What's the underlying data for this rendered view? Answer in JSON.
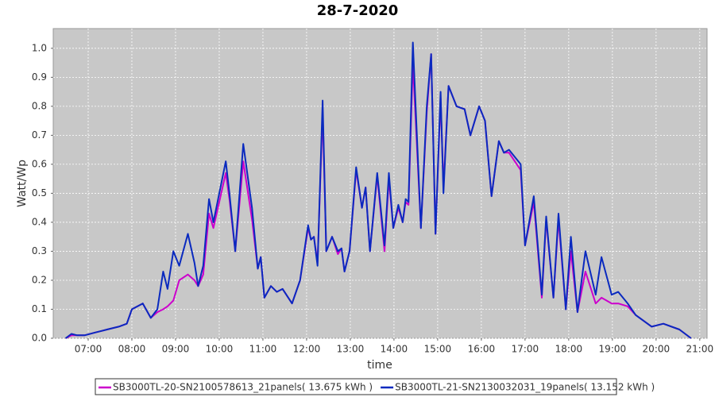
{
  "chart_data": {
    "type": "line",
    "title": "28-7-2020",
    "x_label": "time",
    "y_label": "Watt/Wp",
    "x": [
      "06:29",
      "06:37",
      "06:45",
      "06:55",
      "07:10",
      "07:26",
      "07:42",
      "07:53",
      "08:00",
      "08:15",
      "08:26",
      "08:35",
      "08:43",
      "08:49",
      "08:57",
      "09:05",
      "09:17",
      "09:26",
      "09:31",
      "09:38",
      "09:46",
      "09:52",
      "10:09",
      "10:14",
      "10:22",
      "10:33",
      "10:45",
      "10:53",
      "10:57",
      "11:02",
      "11:11",
      "11:19",
      "11:27",
      "11:40",
      "11:51",
      "12:02",
      "12:06",
      "12:10",
      "12:15",
      "12:22",
      "12:27",
      "12:35",
      "12:43",
      "12:48",
      "12:52",
      "12:59",
      "13:08",
      "13:16",
      "13:21",
      "13:27",
      "13:37",
      "13:47",
      "13:53",
      "13:59",
      "14:06",
      "14:12",
      "14:16",
      "14:20",
      "14:26",
      "14:37",
      "14:45",
      "14:51",
      "14:57",
      "15:04",
      "15:08",
      "15:15",
      "15:26",
      "15:37",
      "15:45",
      "15:57",
      "16:05",
      "16:14",
      "16:24",
      "16:31",
      "16:38",
      "16:54",
      "17:00",
      "17:12",
      "17:23",
      "17:29",
      "17:39",
      "17:46",
      "17:56",
      "18:03",
      "18:12",
      "18:23",
      "18:37",
      "18:45",
      "18:59",
      "19:08",
      "19:21",
      "19:32",
      "19:54",
      "20:10",
      "20:32",
      "20:48"
    ],
    "series": [
      {
        "name": "SB3000TL-20-SN2100578613_21panels( 13.675 kWh )",
        "color": "#cc00cc",
        "values": [
          0,
          0.01,
          0.01,
          0.01,
          0.02,
          0.03,
          0.04,
          0.05,
          0.1,
          0.12,
          0.07,
          0.09,
          0.1,
          0.11,
          0.13,
          0.2,
          0.22,
          0.2,
          0.18,
          0.22,
          0.43,
          0.38,
          0.57,
          0.48,
          0.3,
          0.61,
          0.41,
          0.24,
          0.28,
          0.14,
          0.18,
          0.16,
          0.17,
          0.12,
          0.2,
          0.38,
          0.34,
          0.35,
          0.26,
          0.78,
          0.3,
          0.35,
          0.29,
          0.31,
          0.23,
          0.3,
          0.58,
          0.45,
          0.52,
          0.3,
          0.56,
          0.3,
          0.55,
          0.38,
          0.45,
          0.4,
          0.47,
          0.46,
          0.95,
          0.38,
          0.78,
          0.98,
          0.36,
          0.83,
          0.52,
          0.87,
          0.8,
          0.79,
          0.7,
          0.8,
          0.75,
          0.49,
          0.68,
          0.64,
          0.64,
          0.58,
          0.32,
          0.47,
          0.14,
          0.41,
          0.14,
          0.41,
          0.1,
          0.3,
          0.09,
          0.23,
          0.12,
          0.14,
          0.12,
          0.12,
          0.11,
          0.08,
          0.04,
          0.05,
          0.03,
          0
        ]
      },
      {
        "name": "SB3000TL-21-SN2130032031_19panels( 13.152 kWh )",
        "color": "#0a2abf",
        "values": [
          0,
          0.015,
          0.01,
          0.01,
          0.02,
          0.03,
          0.04,
          0.05,
          0.1,
          0.12,
          0.07,
          0.1,
          0.23,
          0.17,
          0.3,
          0.25,
          0.36,
          0.26,
          0.18,
          0.25,
          0.48,
          0.4,
          0.61,
          0.5,
          0.3,
          0.67,
          0.45,
          0.24,
          0.28,
          0.14,
          0.18,
          0.16,
          0.17,
          0.12,
          0.2,
          0.39,
          0.34,
          0.35,
          0.25,
          0.82,
          0.3,
          0.35,
          0.3,
          0.31,
          0.23,
          0.3,
          0.59,
          0.45,
          0.52,
          0.3,
          0.57,
          0.32,
          0.57,
          0.38,
          0.46,
          0.4,
          0.48,
          0.47,
          1.02,
          0.38,
          0.8,
          0.98,
          0.36,
          0.85,
          0.5,
          0.87,
          0.8,
          0.79,
          0.7,
          0.8,
          0.75,
          0.49,
          0.68,
          0.64,
          0.65,
          0.6,
          0.32,
          0.49,
          0.15,
          0.42,
          0.14,
          0.43,
          0.1,
          0.35,
          0.09,
          0.3,
          0.15,
          0.28,
          0.15,
          0.16,
          0.12,
          0.08,
          0.04,
          0.05,
          0.03,
          0
        ]
      }
    ],
    "xlim": [
      "06:12",
      "21:10"
    ],
    "xticks": [
      "07:00",
      "08:00",
      "09:00",
      "10:00",
      "11:00",
      "12:00",
      "13:00",
      "14:00",
      "15:00",
      "16:00",
      "17:00",
      "18:00",
      "19:00",
      "20:00",
      "21:00"
    ],
    "ylim": [
      0,
      1.068
    ],
    "yticks": [
      {
        "value": 0,
        "label": "0.0"
      },
      0.1,
      0.2,
      0.3,
      0.4,
      0.5,
      0.6,
      0.7,
      0.8,
      0.9,
      {
        "value": 1,
        "label": "1.0"
      }
    ],
    "grid": true
  }
}
